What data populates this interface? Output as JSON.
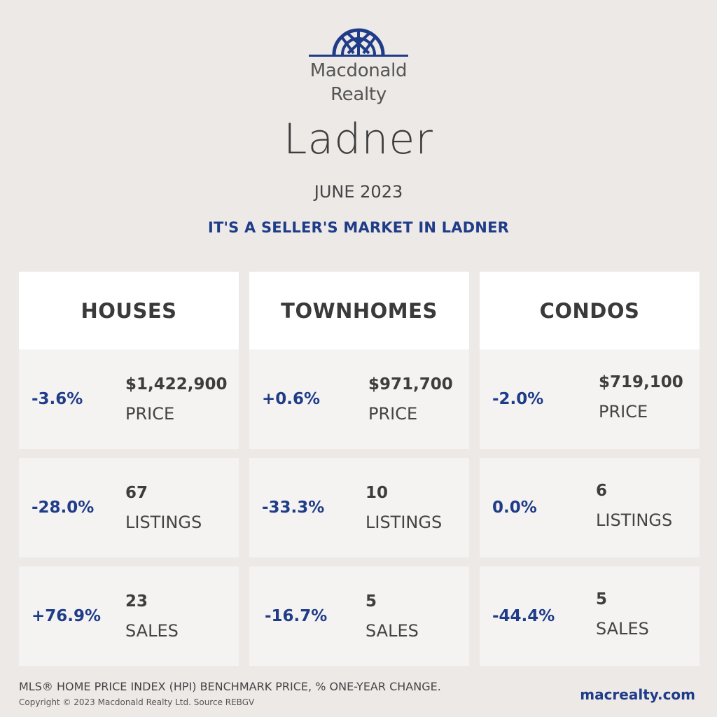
{
  "brand": {
    "name_line1": "Macdonald",
    "name_line2": "Realty",
    "logo_color": "#1f3c88"
  },
  "city": "Ladner",
  "period": "JUNE 2023",
  "headline": "IT'S A SELLER'S MARKET IN LADNER",
  "columns": [
    {
      "title": "HOUSES",
      "price": {
        "change": "-3.6%",
        "value": "$1,422,900",
        "label": "PRICE"
      },
      "listings": {
        "change": "-28.0%",
        "value": "67",
        "label": "LISTINGS"
      },
      "sales": {
        "change": "+76.9%",
        "value": "23",
        "label": "SALES"
      }
    },
    {
      "title": "TOWNHOMES",
      "price": {
        "change": "+0.6%",
        "value": "$971,700",
        "label": "PRICE"
      },
      "listings": {
        "change": "-33.3%",
        "value": "10",
        "label": "LISTINGS"
      },
      "sales": {
        "change": "-16.7%",
        "value": "5",
        "label": "SALES"
      }
    },
    {
      "title": "CONDOS",
      "price": {
        "change": "-2.0%",
        "value": "$719,100",
        "label": "PRICE"
      },
      "listings": {
        "change": "0.0%",
        "value": "6",
        "label": "LISTINGS"
      },
      "sales": {
        "change": "-44.4%",
        "value": "5",
        "label": "SALES"
      }
    }
  ],
  "footer": {
    "note": "MLS® HOME PRICE INDEX (HPI) BENCHMARK PRICE, % ONE-YEAR CHANGE.",
    "copyright": "Copyright © 2023 Macdonald Realty Ltd. Source REBGV",
    "website": "macrealty.com"
  },
  "colors": {
    "accent": "#1f3c88",
    "background": "#ede9e7",
    "card": "#f5f3f2",
    "header": "#ffffff"
  }
}
